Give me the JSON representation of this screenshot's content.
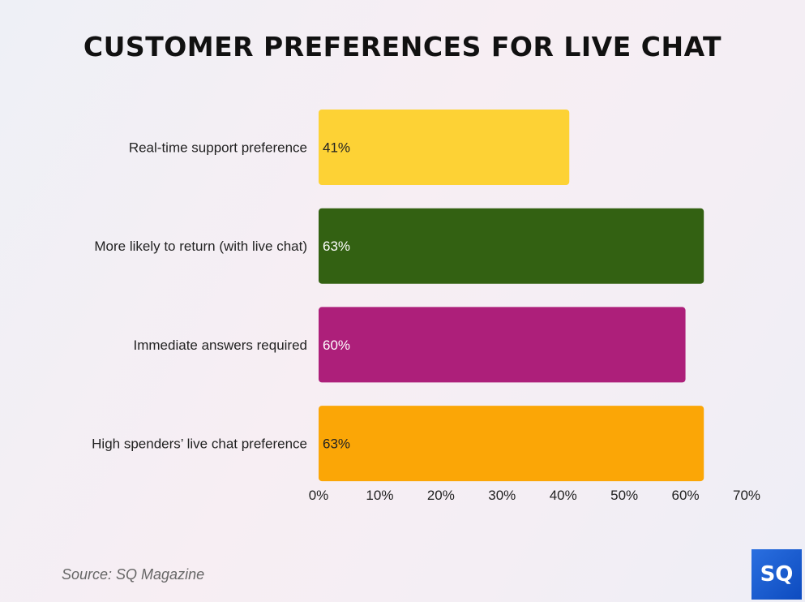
{
  "chart_data": {
    "type": "bar",
    "orientation": "horizontal",
    "title": "CUSTOMER PREFERENCES FOR LIVE CHAT",
    "categories": [
      "Real-time support preference",
      "More likely to return (with live chat)",
      "Immediate answers required",
      "High spenders’ live chat preference"
    ],
    "values": [
      41,
      63,
      60,
      63
    ],
    "value_labels": [
      "41%",
      "63%",
      "60%",
      "63%"
    ],
    "colors": [
      "#fdd235",
      "#336112",
      "#ad1f7a",
      "#fba606"
    ],
    "label_colors": [
      "#222222",
      "#ffffff",
      "#ffffff",
      "#222222"
    ],
    "xlim": [
      0,
      70
    ],
    "xticks": [
      0,
      10,
      20,
      30,
      40,
      50,
      60,
      70
    ],
    "xtick_labels": [
      "0%",
      "10%",
      "20%",
      "30%",
      "40%",
      "50%",
      "60%",
      "70%"
    ],
    "xlabel": "",
    "ylabel": "",
    "grid": false
  },
  "source": "Source: SQ Magazine",
  "logo_text": "SQ"
}
